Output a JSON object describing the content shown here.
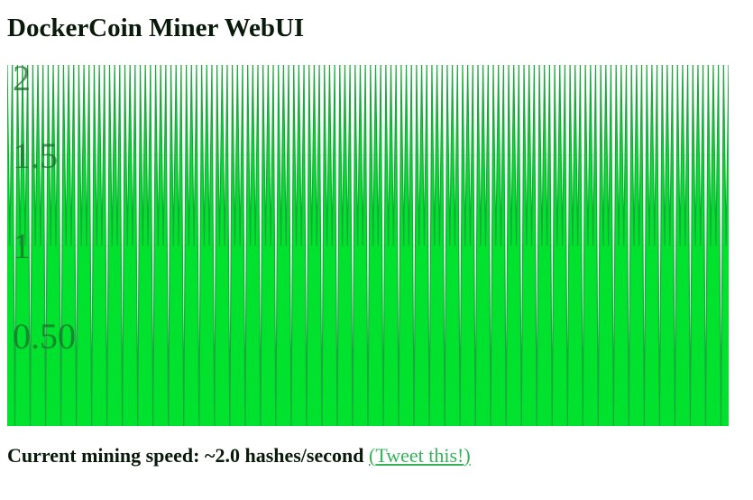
{
  "page": {
    "title": "DockerCoin Miner WebUI"
  },
  "speed": {
    "prefix": "Current mining speed: ",
    "value": "~2.0",
    "unit": " hashes/second",
    "tweet_open": "(",
    "tweet_label": "Tweet this!",
    "tweet_close": ")"
  },
  "chart_data": {
    "type": "area",
    "title": "",
    "xlabel": "",
    "ylabel": "",
    "ylim": [
      0,
      2
    ],
    "yticks": [
      {
        "value": 0.5,
        "label": "0.50"
      },
      {
        "value": 1,
        "label": "1"
      },
      {
        "value": 1.5,
        "label": "1.5"
      },
      {
        "value": 2,
        "label": "2"
      }
    ],
    "grid": true,
    "legend": "none",
    "fill_color": "#00e22d",
    "line_color": "#1aa83c",
    "series": [
      {
        "values": [
          2,
          1,
          2,
          0,
          2,
          1,
          2,
          1,
          2,
          0,
          2,
          1,
          2,
          1,
          2,
          0,
          2,
          1,
          2,
          1,
          2,
          0,
          2,
          1,
          2,
          1,
          2,
          0,
          2,
          1,
          2,
          1,
          2,
          0,
          2,
          1,
          2,
          1,
          2,
          0,
          2,
          1,
          2,
          1,
          2,
          0,
          2,
          1,
          2,
          1,
          2,
          0,
          2,
          1,
          2,
          1,
          2,
          0,
          2,
          1,
          2,
          1,
          2,
          0,
          2,
          1,
          2,
          1,
          2,
          0,
          2,
          1,
          2,
          1,
          2,
          0,
          2,
          1,
          2,
          1,
          2,
          0,
          2,
          1,
          2,
          1,
          2,
          0,
          2,
          1,
          2,
          1,
          2,
          0,
          2,
          1,
          2,
          1,
          2,
          0,
          2,
          1,
          2,
          1,
          2,
          0,
          2,
          1,
          2,
          1,
          2,
          0,
          2,
          1,
          2,
          1,
          2,
          0,
          2,
          1,
          2,
          1,
          2,
          0,
          2,
          1,
          2,
          1,
          2,
          0,
          2,
          1,
          2,
          1,
          2,
          0,
          2,
          1,
          2,
          1,
          2,
          0,
          2,
          1,
          2,
          1,
          2,
          0,
          2,
          1,
          2,
          1,
          2,
          0,
          2,
          1,
          2,
          1,
          2,
          0,
          2,
          1,
          2,
          1,
          2,
          0,
          2,
          1,
          2,
          1,
          2,
          0,
          2,
          1,
          2,
          1,
          2,
          0,
          2,
          1,
          2,
          1,
          2,
          0,
          2,
          1,
          2,
          1,
          2,
          0,
          2,
          1,
          2,
          1,
          2,
          0,
          2,
          1,
          2,
          1,
          2,
          0,
          2,
          1,
          2,
          1,
          2,
          0,
          2,
          1,
          2,
          1,
          2,
          0,
          2,
          1,
          2,
          1,
          2,
          0,
          2,
          1,
          2,
          1,
          2,
          0,
          2,
          1,
          2,
          1,
          2,
          0,
          2,
          1,
          2,
          1,
          2,
          0,
          2,
          1,
          2,
          1,
          2,
          0,
          2,
          1,
          2,
          1,
          2,
          0,
          2,
          1,
          2,
          1,
          2,
          0,
          2,
          1,
          2,
          1,
          2,
          0,
          2,
          1,
          2,
          1,
          2,
          0,
          2,
          1,
          2,
          1,
          2,
          0,
          2,
          1,
          2,
          1,
          2,
          0,
          2,
          1,
          2
        ]
      }
    ]
  }
}
